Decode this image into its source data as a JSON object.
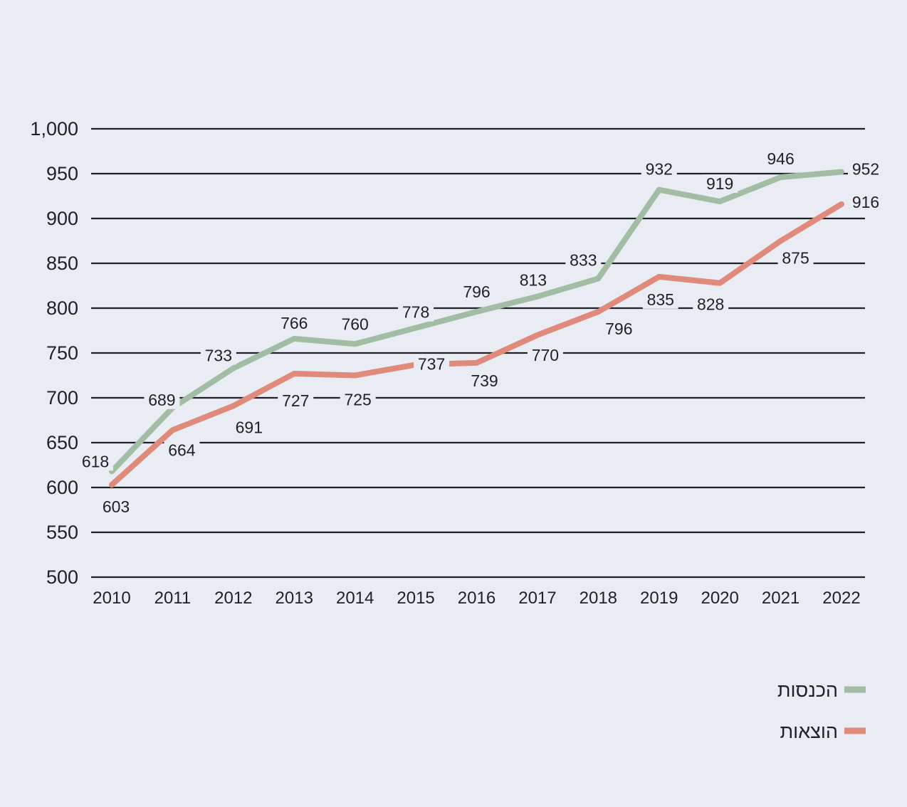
{
  "chart_data": {
    "type": "line",
    "title": "",
    "xlabel": "",
    "ylabel": "",
    "x": [
      2010,
      2011,
      2012,
      2013,
      2014,
      2015,
      2016,
      2017,
      2018,
      2019,
      2020,
      2021,
      2022
    ],
    "ylim": [
      500,
      1000
    ],
    "yticks": [
      500,
      550,
      600,
      650,
      700,
      750,
      800,
      850,
      900,
      950,
      1000
    ],
    "ytick_labels": [
      "500",
      "550",
      "600",
      "650",
      "700",
      "750",
      "800",
      "850",
      "900",
      "950",
      "1,000"
    ],
    "grid": true,
    "legend_position": "bottom-right",
    "series": [
      {
        "name": "הכנסות",
        "color": "#a3bda5",
        "values": [
          618,
          689,
          733,
          766,
          760,
          778,
          796,
          813,
          833,
          932,
          919,
          946,
          952
        ]
      },
      {
        "name": "הוצאות",
        "color": "#e08a7c",
        "values": [
          603,
          664,
          691,
          727,
          725,
          737,
          739,
          770,
          796,
          835,
          828,
          875,
          916
        ]
      }
    ]
  }
}
